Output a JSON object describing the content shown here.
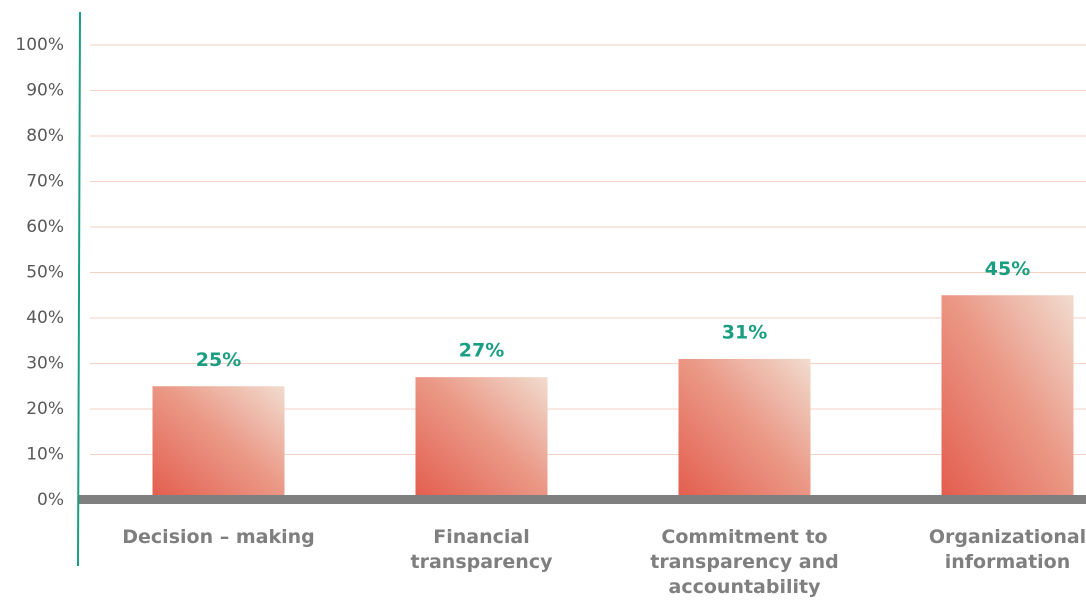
{
  "chart_data": {
    "type": "bar",
    "categories": [
      "Decision – making",
      "Financial transparency",
      "Commitment to transparency and accountability",
      "Organizational information"
    ],
    "values": [
      25,
      27,
      31,
      45
    ],
    "value_labels": [
      "25%",
      "27%",
      "31%",
      "45%"
    ],
    "color": "#e8695a",
    "ylim": [
      0,
      100
    ],
    "yticks": [
      {
        "value": 0,
        "label": "0%"
      },
      {
        "value": 10,
        "label": "10%"
      },
      {
        "value": 20,
        "label": "20%"
      },
      {
        "value": 30,
        "label": "30%"
      },
      {
        "value": 40,
        "label": "40%"
      },
      {
        "value": 50,
        "label": "50%"
      },
      {
        "value": 60,
        "label": "60%"
      },
      {
        "value": 70,
        "label": "70%"
      },
      {
        "value": 80,
        "label": "80%"
      },
      {
        "value": 90,
        "label": "90%"
      },
      {
        "value": 100,
        "label": "100%"
      }
    ],
    "grid": true
  }
}
